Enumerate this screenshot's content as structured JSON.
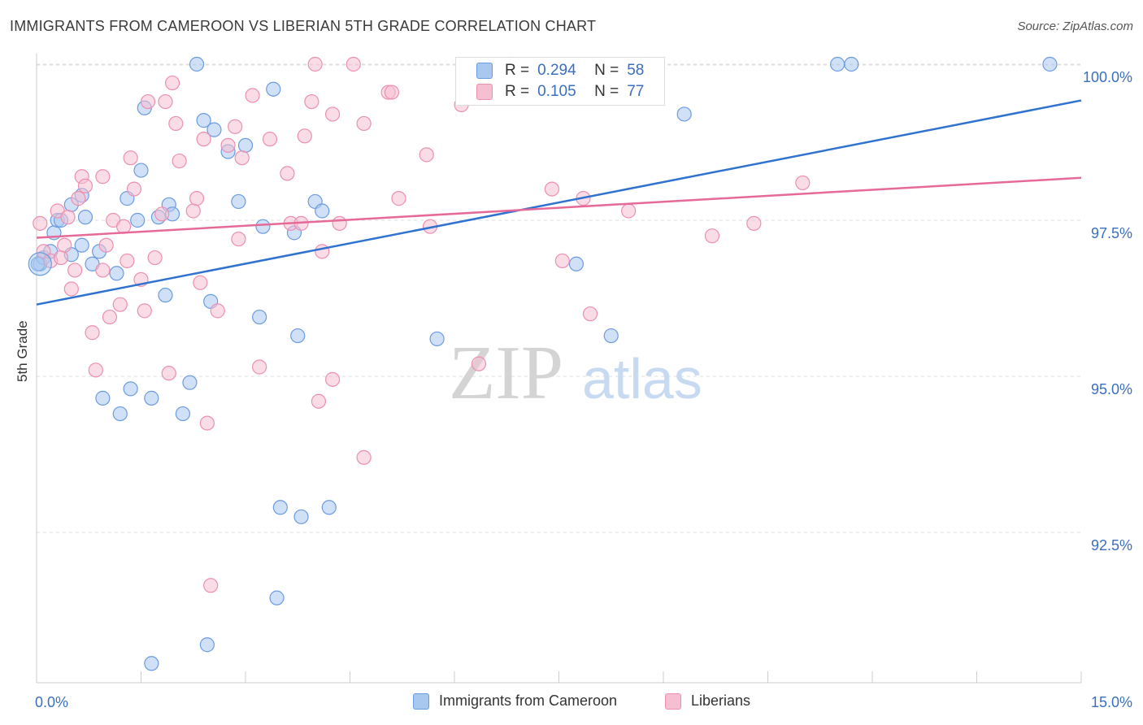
{
  "title": "IMMIGRANTS FROM CAMEROON VS LIBERIAN 5TH GRADE CORRELATION CHART",
  "source": "Source: ZipAtlas.com",
  "watermark": {
    "zip": "ZIP",
    "atlas": "atlas"
  },
  "colors": {
    "blue_fill": "#a9c8f0",
    "blue_stroke": "#6b9be0",
    "blue_line": "#2f72cf",
    "pink_fill": "#f6bfd1",
    "pink_stroke": "#ec8fb0",
    "pink_line": "#e56a98",
    "tick_label": "#3a6fc0",
    "grid": "#dddddd"
  },
  "legend_top": [
    {
      "r_label": "R =",
      "r_value": "0.294",
      "n_label": "N =",
      "n_value": "58",
      "color": "#a9c8f0",
      "stroke": "#6b9be0"
    },
    {
      "r_label": "R =",
      "r_value": "0.105",
      "n_label": "N =",
      "n_value": "77",
      "color": "#f6bfd1",
      "stroke": "#ec8fb0"
    }
  ],
  "legend_bottom": [
    {
      "label": "Immigrants from Cameroon",
      "color": "#a9c8f0",
      "stroke": "#6b9be0"
    },
    {
      "label": "Liberians",
      "color": "#f6bfd1",
      "stroke": "#ec8fb0"
    }
  ],
  "chart_data": {
    "type": "scatter",
    "title": "IMMIGRANTS FROM CAMEROON VS LIBERIAN 5TH GRADE CORRELATION CHART",
    "xlabel": "",
    "ylabel": "5th Grade",
    "xlim": [
      0,
      15
    ],
    "ylim": [
      90.2,
      100.2
    ],
    "x_tick_labels": [
      "0.0%",
      "15.0%"
    ],
    "y_ticks": [
      92.5,
      95.0,
      97.5,
      100.0
    ],
    "y_tick_labels": [
      "92.5%",
      "95.0%",
      "97.5%",
      "100.0%"
    ],
    "grid": "horizontal dashed",
    "legend": "top-center and bottom",
    "series": [
      {
        "name": "Immigrants from Cameroon",
        "r": 0.294,
        "n": 58,
        "trend": {
          "x": [
            0,
            15
          ],
          "y": [
            96.15,
            99.42
          ]
        },
        "points": [
          [
            0.05,
            96.8
          ],
          [
            0.1,
            96.9
          ],
          [
            0.2,
            97.0
          ],
          [
            0.25,
            97.3
          ],
          [
            0.3,
            97.5
          ],
          [
            0.35,
            97.5
          ],
          [
            0.5,
            96.95
          ],
          [
            0.5,
            97.75
          ],
          [
            0.65,
            97.9
          ],
          [
            0.7,
            97.55
          ],
          [
            0.65,
            97.1
          ],
          [
            0.8,
            96.8
          ],
          [
            0.9,
            97.0
          ],
          [
            1.15,
            96.65
          ],
          [
            1.3,
            97.85
          ],
          [
            1.45,
            97.5
          ],
          [
            1.5,
            98.3
          ],
          [
            1.55,
            99.3
          ],
          [
            1.75,
            97.55
          ],
          [
            1.9,
            97.75
          ],
          [
            1.95,
            97.6
          ],
          [
            2.3,
            100.0
          ],
          [
            2.4,
            99.1
          ],
          [
            2.55,
            98.95
          ],
          [
            2.75,
            98.6
          ],
          [
            2.9,
            97.8
          ],
          [
            3.0,
            98.7
          ],
          [
            3.25,
            97.4
          ],
          [
            3.4,
            99.6
          ],
          [
            3.7,
            97.3
          ],
          [
            4.0,
            97.8
          ],
          [
            4.1,
            97.65
          ],
          [
            1.85,
            96.3
          ],
          [
            2.5,
            96.2
          ],
          [
            3.2,
            95.95
          ],
          [
            3.75,
            95.65
          ],
          [
            5.75,
            95.6
          ],
          [
            7.75,
            96.8
          ],
          [
            8.25,
            95.65
          ],
          [
            1.35,
            94.8
          ],
          [
            1.65,
            94.65
          ],
          [
            2.2,
            94.9
          ],
          [
            2.1,
            94.4
          ],
          [
            0.95,
            94.65
          ],
          [
            1.2,
            94.4
          ],
          [
            3.5,
            92.9
          ],
          [
            3.8,
            92.75
          ],
          [
            4.2,
            92.9
          ],
          [
            3.45,
            91.45
          ],
          [
            2.45,
            90.7
          ],
          [
            1.65,
            90.4
          ],
          [
            6.8,
            100.0
          ],
          [
            8.75,
            100.0
          ],
          [
            9.3,
            99.2
          ],
          [
            11.5,
            100.0
          ],
          [
            11.7,
            100.0
          ],
          [
            14.55,
            100.0
          ],
          [
            0.02,
            96.8
          ]
        ]
      },
      {
        "name": "Liberians",
        "r": 0.105,
        "n": 77,
        "trend": {
          "x": [
            0,
            15
          ],
          "y": [
            97.22,
            98.18
          ]
        },
        "points": [
          [
            0.05,
            97.45
          ],
          [
            0.1,
            97.0
          ],
          [
            0.2,
            96.85
          ],
          [
            0.3,
            97.65
          ],
          [
            0.35,
            96.9
          ],
          [
            0.4,
            97.1
          ],
          [
            0.45,
            97.55
          ],
          [
            0.5,
            96.4
          ],
          [
            0.55,
            96.7
          ],
          [
            0.6,
            97.85
          ],
          [
            0.65,
            98.2
          ],
          [
            0.7,
            98.05
          ],
          [
            0.8,
            95.7
          ],
          [
            0.85,
            95.1
          ],
          [
            0.95,
            96.7
          ],
          [
            0.95,
            98.2
          ],
          [
            1.0,
            97.1
          ],
          [
            1.05,
            95.95
          ],
          [
            1.1,
            97.5
          ],
          [
            1.2,
            96.15
          ],
          [
            1.25,
            97.4
          ],
          [
            1.3,
            96.85
          ],
          [
            1.35,
            98.5
          ],
          [
            1.4,
            98.0
          ],
          [
            1.5,
            96.55
          ],
          [
            1.55,
            96.05
          ],
          [
            1.6,
            99.4
          ],
          [
            1.7,
            96.9
          ],
          [
            1.8,
            97.6
          ],
          [
            1.85,
            99.4
          ],
          [
            1.9,
            95.05
          ],
          [
            1.95,
            99.7
          ],
          [
            2.0,
            99.05
          ],
          [
            2.05,
            98.45
          ],
          [
            2.25,
            97.65
          ],
          [
            2.3,
            97.85
          ],
          [
            2.35,
            96.5
          ],
          [
            2.4,
            98.8
          ],
          [
            2.45,
            94.25
          ],
          [
            2.5,
            91.65
          ],
          [
            2.6,
            96.05
          ],
          [
            2.75,
            98.7
          ],
          [
            2.85,
            99.0
          ],
          [
            2.9,
            97.2
          ],
          [
            2.95,
            98.5
          ],
          [
            3.1,
            99.5
          ],
          [
            3.2,
            95.15
          ],
          [
            3.35,
            98.8
          ],
          [
            3.6,
            98.25
          ],
          [
            3.65,
            97.45
          ],
          [
            3.8,
            97.45
          ],
          [
            3.85,
            98.85
          ],
          [
            3.95,
            99.4
          ],
          [
            4.0,
            100.0
          ],
          [
            4.05,
            94.6
          ],
          [
            4.1,
            97.0
          ],
          [
            4.25,
            99.2
          ],
          [
            4.25,
            94.95
          ],
          [
            4.35,
            97.45
          ],
          [
            4.55,
            100.0
          ],
          [
            4.7,
            93.7
          ],
          [
            4.7,
            99.05
          ],
          [
            5.05,
            99.55
          ],
          [
            5.1,
            99.55
          ],
          [
            5.2,
            97.85
          ],
          [
            5.6,
            98.55
          ],
          [
            5.65,
            97.4
          ],
          [
            6.1,
            99.35
          ],
          [
            6.35,
            95.2
          ],
          [
            7.4,
            98.0
          ],
          [
            7.55,
            96.85
          ],
          [
            7.85,
            97.85
          ],
          [
            7.95,
            96.0
          ],
          [
            8.5,
            97.65
          ],
          [
            9.7,
            97.25
          ],
          [
            10.3,
            97.45
          ],
          [
            11.0,
            98.1
          ]
        ]
      }
    ]
  }
}
